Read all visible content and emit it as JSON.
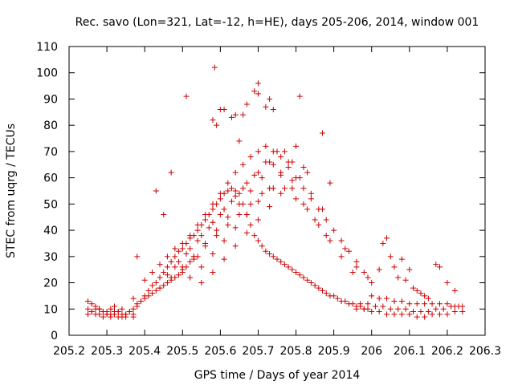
{
  "chart_data": {
    "type": "scatter",
    "title": "Rec. savo (Lon=321, Lat=-12, h=HE), days 205-206, 2014, window 001",
    "xlabel": "GPS time / Days of year 2014",
    "ylabel": "STEC from uqrg / TECUs",
    "xlim": [
      205.2,
      206.3
    ],
    "ylim": [
      0,
      110
    ],
    "xticks": [
      205.2,
      205.3,
      205.4,
      205.5,
      205.6,
      205.7,
      205.8,
      205.9,
      206,
      206.1,
      206.2,
      206.3
    ],
    "xtick_labels": [
      "205.2",
      "205.3",
      "205.4",
      "205.5",
      "205.6",
      "205.7",
      "205.8",
      "205.9",
      "206",
      "206.1",
      "206.2",
      "206.3"
    ],
    "yticks": [
      0,
      10,
      20,
      30,
      40,
      50,
      60,
      70,
      80,
      90,
      100,
      110
    ],
    "ytick_labels": [
      "0",
      "10",
      "20",
      "30",
      "40",
      "50",
      "60",
      "70",
      "80",
      "90",
      "100",
      "110"
    ],
    "grid": false,
    "marker": "+",
    "color": "#cc0000",
    "series": [
      {
        "name": "STEC",
        "x": [
          205.25,
          205.26,
          205.27,
          205.28,
          205.29,
          205.3,
          205.31,
          205.32,
          205.33,
          205.34,
          205.35,
          205.36,
          205.37,
          205.25,
          205.26,
          205.27,
          205.28,
          205.29,
          205.3,
          205.31,
          205.32,
          205.33,
          205.34,
          205.35,
          205.25,
          205.27,
          205.29,
          205.31,
          205.33,
          205.35,
          205.37,
          205.26,
          205.28,
          205.3,
          205.32,
          205.34,
          205.36,
          205.37,
          205.38,
          205.39,
          205.4,
          205.41,
          205.42,
          205.43,
          205.44,
          205.45,
          205.46,
          205.47,
          205.48,
          205.49,
          205.5,
          205.51,
          205.52,
          205.53,
          205.54,
          205.38,
          205.39,
          205.4,
          205.41,
          205.42,
          205.43,
          205.44,
          205.45,
          205.46,
          205.47,
          205.48,
          205.49,
          205.5,
          205.51,
          205.52,
          205.53,
          205.54,
          205.55,
          205.56,
          205.57,
          205.58,
          205.59,
          205.6,
          205.61,
          205.62,
          205.63,
          205.64,
          205.65,
          205.66,
          205.67,
          205.68,
          205.69,
          205.7,
          205.71,
          205.72,
          205.73,
          205.74,
          205.75,
          205.76,
          205.77,
          205.78,
          205.79,
          205.8,
          205.81,
          205.82,
          205.83,
          205.84,
          205.85,
          205.86,
          205.87,
          205.88,
          205.89,
          205.9,
          205.91,
          205.92,
          205.93,
          205.94,
          205.95,
          205.96,
          205.97,
          205.98,
          205.99,
          205.4,
          205.42,
          205.44,
          205.46,
          205.48,
          205.5,
          205.52,
          205.54,
          205.56,
          205.58,
          205.6,
          205.62,
          205.64,
          205.66,
          205.68,
          205.7,
          205.72,
          205.74,
          205.76,
          205.78,
          205.8,
          205.82,
          205.84,
          205.86,
          205.88,
          205.9,
          205.92,
          205.94,
          205.96,
          205.98,
          206.0,
          205.44,
          205.47,
          205.5,
          205.53,
          205.56,
          205.59,
          205.62,
          205.65,
          205.68,
          205.71,
          205.74,
          205.77,
          205.8,
          205.83,
          205.86,
          205.89,
          205.92,
          205.95,
          205.46,
          205.49,
          205.52,
          205.55,
          205.58,
          205.61,
          205.64,
          205.67,
          205.7,
          205.73,
          205.76,
          205.79,
          205.82,
          205.85,
          205.88,
          205.48,
          205.51,
          205.54,
          205.57,
          205.6,
          205.63,
          205.66,
          205.69,
          205.72,
          205.75,
          205.78,
          205.81,
          205.84,
          205.87,
          205.5,
          205.53,
          205.56,
          205.59,
          205.62,
          205.65,
          205.68,
          205.71,
          205.74,
          205.77,
          205.8,
          205.83,
          205.52,
          205.55,
          205.58,
          205.61,
          205.64,
          205.67,
          205.7,
          205.73,
          205.76,
          205.79,
          205.82,
          205.55,
          205.58,
          205.61,
          205.64,
          205.67,
          205.7,
          205.73,
          205.76,
          205.79,
          205.58,
          205.61,
          205.64,
          205.67,
          205.7,
          205.73,
          205.585,
          205.6,
          205.63,
          205.66,
          205.69,
          205.7,
          205.72,
          205.74,
          205.59,
          205.65,
          205.51,
          205.47,
          205.37,
          205.38,
          205.43,
          205.45,
          205.81,
          205.87,
          205.89,
          205.93,
          205.96,
          205.99,
          205.96,
          205.98,
          206.0,
          206.02,
          206.04,
          206.06,
          206.08,
          206.1,
          206.12,
          206.14,
          206.16,
          206.18,
          206.2,
          206.22,
          206.24,
          205.97,
          205.99,
          206.01,
          206.03,
          206.05,
          206.07,
          206.09,
          206.11,
          206.13,
          206.15,
          206.17,
          206.19,
          206.21,
          206.23,
          206.0,
          206.02,
          206.04,
          206.06,
          206.08,
          206.1,
          206.12,
          206.14,
          206.16,
          206.18,
          206.2,
          206.22,
          206.24,
          206.02,
          206.03,
          206.04,
          206.05,
          206.06,
          206.07,
          206.08,
          206.09,
          206.1,
          206.11,
          206.12,
          206.13,
          206.14,
          206.15,
          206.17,
          206.18,
          206.2,
          206.22
        ],
        "y": [
          13,
          12,
          11,
          10,
          9,
          9,
          10,
          11,
          9,
          8,
          8,
          9,
          8,
          10,
          9,
          8,
          8,
          7,
          8,
          7,
          8,
          9,
          7,
          7,
          8,
          10,
          9,
          8,
          7,
          8,
          7,
          9,
          10,
          8,
          9,
          10,
          9,
          10,
          11,
          13,
          14,
          15,
          16,
          17,
          18,
          19,
          20,
          21,
          22,
          23,
          24,
          26,
          28,
          29,
          30,
          12,
          13,
          15,
          17,
          19,
          20,
          22,
          24,
          26,
          28,
          30,
          32,
          33,
          35,
          37,
          38,
          40,
          42,
          44,
          46,
          48,
          50,
          52,
          54,
          55,
          56,
          55,
          54,
          50,
          46,
          42,
          38,
          36,
          34,
          32,
          31,
          30,
          29,
          28,
          27,
          26,
          25,
          24,
          23,
          22,
          21,
          20,
          19,
          18,
          17,
          16,
          15,
          15,
          14,
          13,
          13,
          12,
          12,
          11,
          11,
          10,
          10,
          21,
          24,
          27,
          30,
          33,
          35,
          38,
          42,
          46,
          50,
          54,
          58,
          62,
          65,
          68,
          70,
          72,
          70,
          68,
          64,
          60,
          56,
          52,
          48,
          44,
          40,
          36,
          32,
          28,
          24,
          20,
          18,
          22,
          26,
          30,
          34,
          38,
          42,
          46,
          50,
          54,
          56,
          56,
          52,
          48,
          42,
          36,
          30,
          24,
          23,
          28,
          33,
          38,
          43,
          48,
          53,
          58,
          62,
          66,
          62,
          56,
          50,
          44,
          38,
          26,
          31,
          36,
          41,
          46,
          51,
          56,
          61,
          66,
          70,
          66,
          60,
          54,
          48,
          25,
          30,
          35,
          40,
          45,
          50,
          55,
          60,
          65,
          70,
          72,
          62,
          22,
          26,
          31,
          36,
          41,
          46,
          51,
          56,
          61,
          66,
          64,
          20,
          24,
          29,
          34,
          39,
          44,
          49,
          54,
          59,
          82,
          86,
          84,
          88,
          92,
          90,
          102,
          86,
          83,
          84,
          93,
          96,
          87,
          86,
          80,
          74,
          91,
          62,
          14,
          30,
          55,
          46,
          91,
          77,
          58,
          33,
          26,
          22,
          10,
          10,
          9,
          9,
          8,
          8,
          8,
          8,
          7,
          7,
          8,
          8,
          8,
          9,
          9,
          12,
          12,
          11,
          11,
          10,
          10,
          10,
          9,
          9,
          9,
          10,
          10,
          11,
          11,
          15,
          14,
          14,
          13,
          13,
          12,
          12,
          12,
          12,
          12,
          12,
          11,
          11,
          25,
          35,
          37,
          30,
          26,
          22,
          29,
          21,
          25,
          18,
          17,
          16,
          15,
          14,
          27,
          26,
          20,
          17
        ]
      }
    ]
  }
}
